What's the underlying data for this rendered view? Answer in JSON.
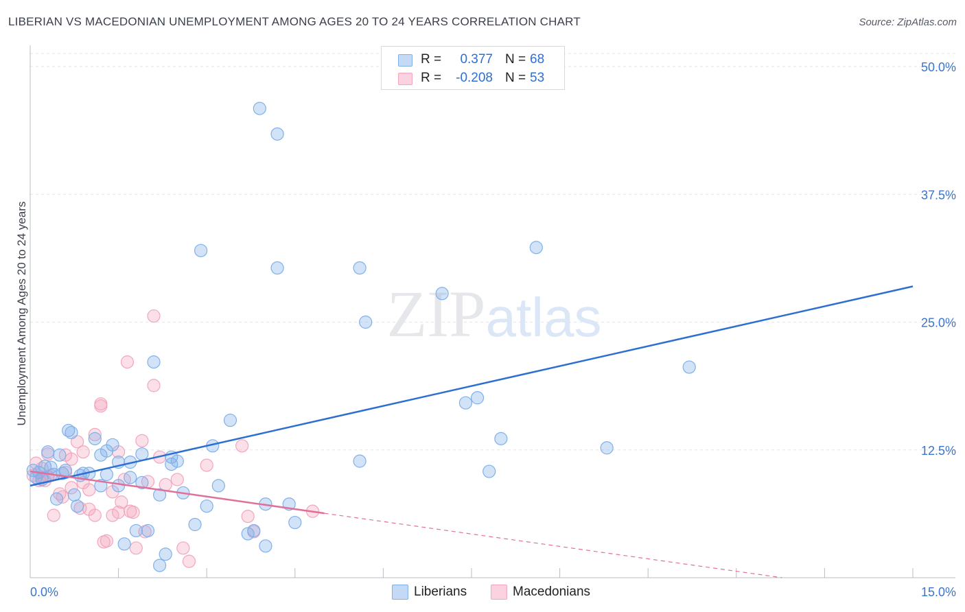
{
  "chart_data": {
    "type": "scatter",
    "title": "LIBERIAN VS MACEDONIAN UNEMPLOYMENT AMONG AGES 20 TO 24 YEARS CORRELATION CHART",
    "source": "Source: ZipAtlas.com",
    "xlabel": "",
    "ylabel": "Unemployment Among Ages 20 to 24 years",
    "xlim": [
      0,
      15
    ],
    "ylim": [
      0,
      50
    ],
    "x_tick_labels": [
      "0.0%",
      "15.0%"
    ],
    "y_tick_values": [
      12.5,
      25.0,
      37.5,
      50.0
    ],
    "y_tick_labels": [
      "12.5%",
      "25.0%",
      "37.5%",
      "50.0%"
    ],
    "watermark": "ZIPatlas",
    "legend": {
      "rows": [
        {
          "r_label": "R =",
          "r_value": "0.377",
          "n_label": "N =",
          "n_value": "68"
        },
        {
          "r_label": "R =",
          "r_value": "-0.208",
          "n_label": "N =",
          "n_value": "53"
        }
      ]
    },
    "series": [
      {
        "name": "Liberians",
        "color": "#7fb0ea",
        "line_color": "#2d6fd0",
        "trend": {
          "x0": 0.0,
          "y0": 9.0,
          "x1": 15.0,
          "y1": 28.5,
          "dashed_after": null
        },
        "points": [
          [
            0.05,
            10.5
          ],
          [
            0.1,
            9.8
          ],
          [
            0.15,
            10.3
          ],
          [
            0.2,
            9.6
          ],
          [
            0.25,
            10.9
          ],
          [
            0.3,
            12.3
          ],
          [
            0.35,
            10.8
          ],
          [
            0.4,
            10.1
          ],
          [
            0.45,
            7.7
          ],
          [
            0.5,
            12.0
          ],
          [
            0.55,
            10.2
          ],
          [
            0.6,
            10.5
          ],
          [
            0.65,
            14.4
          ],
          [
            0.7,
            14.2
          ],
          [
            0.75,
            8.1
          ],
          [
            0.8,
            7.0
          ],
          [
            0.85,
            10.0
          ],
          [
            0.9,
            10.2
          ],
          [
            1.1,
            13.6
          ],
          [
            1.2,
            12.0
          ],
          [
            1.2,
            9.0
          ],
          [
            1.3,
            12.4
          ],
          [
            1.3,
            10.1
          ],
          [
            1.4,
            13.0
          ],
          [
            1.5,
            11.3
          ],
          [
            1.5,
            9.0
          ],
          [
            1.6,
            3.3
          ],
          [
            1.7,
            11.3
          ],
          [
            1.7,
            9.8
          ],
          [
            1.8,
            4.6
          ],
          [
            1.9,
            12.1
          ],
          [
            1.9,
            9.3
          ],
          [
            2.0,
            4.6
          ],
          [
            2.2,
            8.1
          ],
          [
            2.2,
            1.2
          ],
          [
            2.3,
            2.3
          ],
          [
            2.4,
            11.1
          ],
          [
            2.4,
            11.8
          ],
          [
            2.5,
            11.4
          ],
          [
            2.6,
            8.3
          ],
          [
            2.8,
            5.2
          ],
          [
            2.9,
            32.0
          ],
          [
            3.0,
            7.0
          ],
          [
            3.1,
            12.9
          ],
          [
            3.2,
            9.0
          ],
          [
            3.4,
            15.4
          ],
          [
            3.7,
            4.3
          ],
          [
            3.8,
            4.6
          ],
          [
            3.9,
            45.9
          ],
          [
            4.0,
            3.1
          ],
          [
            4.0,
            7.2
          ],
          [
            4.2,
            43.4
          ],
          [
            4.2,
            30.3
          ],
          [
            4.4,
            7.2
          ],
          [
            4.5,
            5.4
          ],
          [
            5.6,
            11.4
          ],
          [
            5.6,
            30.3
          ],
          [
            5.7,
            25.0
          ],
          [
            7.0,
            27.8
          ],
          [
            7.4,
            17.1
          ],
          [
            7.6,
            17.6
          ],
          [
            7.8,
            10.4
          ],
          [
            8.0,
            13.6
          ],
          [
            8.6,
            32.3
          ],
          [
            9.8,
            12.7
          ],
          [
            11.2,
            20.6
          ],
          [
            2.1,
            21.1
          ],
          [
            1.0,
            10.2
          ]
        ]
      },
      {
        "name": "Macedonians",
        "color": "#f3a5be",
        "line_color": "#e0709a",
        "trend": {
          "x0": 0.0,
          "y0": 10.4,
          "x1": 5.0,
          "y1": 6.3,
          "x_end": 15.0,
          "y_end": -1.8
        },
        "points": [
          [
            0.05,
            10.0
          ],
          [
            0.1,
            11.2
          ],
          [
            0.15,
            9.5
          ],
          [
            0.2,
            9.8
          ],
          [
            0.25,
            9.5
          ],
          [
            0.3,
            12.1
          ],
          [
            0.35,
            10.0
          ],
          [
            0.4,
            6.1
          ],
          [
            0.5,
            8.2
          ],
          [
            0.55,
            7.9
          ],
          [
            0.6,
            12.0
          ],
          [
            0.7,
            11.6
          ],
          [
            0.8,
            13.3
          ],
          [
            0.85,
            6.8
          ],
          [
            0.9,
            9.3
          ],
          [
            1.0,
            6.7
          ],
          [
            1.0,
            8.6
          ],
          [
            1.1,
            14.0
          ],
          [
            1.1,
            6.1
          ],
          [
            1.2,
            16.8
          ],
          [
            1.2,
            17.0
          ],
          [
            1.25,
            3.5
          ],
          [
            1.3,
            3.6
          ],
          [
            1.4,
            8.4
          ],
          [
            1.4,
            6.1
          ],
          [
            1.5,
            6.4
          ],
          [
            1.5,
            12.3
          ],
          [
            1.55,
            7.4
          ],
          [
            1.6,
            9.6
          ],
          [
            1.65,
            21.1
          ],
          [
            1.7,
            6.5
          ],
          [
            1.75,
            6.4
          ],
          [
            1.8,
            2.9
          ],
          [
            1.9,
            13.4
          ],
          [
            1.95,
            4.5
          ],
          [
            2.0,
            9.4
          ],
          [
            2.1,
            18.8
          ],
          [
            2.1,
            25.6
          ],
          [
            2.2,
            11.8
          ],
          [
            2.3,
            9.1
          ],
          [
            2.5,
            9.6
          ],
          [
            2.6,
            2.9
          ],
          [
            2.7,
            1.6
          ],
          [
            3.0,
            11.0
          ],
          [
            3.6,
            12.9
          ],
          [
            3.7,
            6.0
          ],
          [
            3.8,
            4.5
          ],
          [
            4.8,
            6.5
          ],
          [
            0.9,
            12.3
          ],
          [
            0.7,
            8.8
          ],
          [
            0.6,
            10.3
          ],
          [
            0.3,
            9.9
          ],
          [
            0.2,
            10.7
          ]
        ]
      }
    ]
  }
}
